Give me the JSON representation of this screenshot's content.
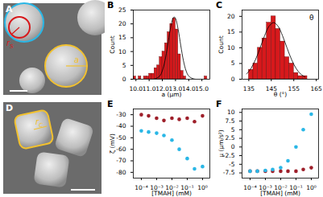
{
  "chart_data": [
    {
      "title": "B",
      "type": "histogram",
      "xlabel": "a (μm)",
      "ylabel": "Count",
      "bins": [
        9.8,
        10.0,
        10.2,
        10.4,
        10.6,
        10.8,
        11.0,
        11.2,
        11.4,
        11.6,
        11.8,
        12.0,
        12.2,
        12.4,
        12.6,
        12.8,
        13.0,
        13.2,
        13.4,
        13.6,
        13.8,
        14.0,
        14.2,
        14.4,
        14.6,
        14.8,
        15.0,
        15.2,
        15.4,
        15.6
      ],
      "values": [
        1,
        0,
        1,
        0,
        1,
        1,
        2,
        2,
        4,
        5,
        8,
        10,
        13,
        17,
        20,
        22,
        18,
        9,
        3,
        1,
        0,
        0,
        0,
        0,
        0,
        0,
        0,
        1,
        0
      ],
      "color": "#d7191c",
      "fit": {
        "x": [
          9.8,
          11.0,
          11.4,
          11.8,
          12.0,
          12.2,
          12.4,
          12.6,
          12.8,
          12.9,
          13.0,
          13.2,
          13.4,
          13.6,
          13.8,
          14.0,
          14.4,
          15.0,
          15.6
        ],
        "values": [
          0,
          0,
          0.09,
          1.13,
          3.05,
          6.7,
          12.1,
          18.0,
          21.96,
          22.5,
          21.96,
          18.0,
          12.1,
          6.7,
          3.05,
          1.13,
          0.09,
          0,
          0
        ],
        "color": "#000000"
      },
      "xlim": [
        9.8,
        15.6
      ],
      "xticks": [
        {
          "value": 10,
          "label": "10.0"
        },
        {
          "value": 11,
          "label": "11.0"
        },
        {
          "value": 12,
          "label": "12.0"
        },
        {
          "value": 13,
          "label": "13.0"
        },
        {
          "value": 14,
          "label": "14.0"
        },
        {
          "value": 15,
          "label": "15.0"
        }
      ],
      "ylim": [
        0,
        25
      ],
      "yticks": [
        0,
        5,
        10,
        15,
        20,
        25
      ]
    },
    {
      "title": "C",
      "type": "histogram",
      "xlabel": "θ (°)",
      "ylabel": "Count",
      "annotation": "θ",
      "bins": [
        135,
        137,
        139,
        141,
        143,
        145,
        147,
        149,
        151,
        153,
        155,
        157,
        159,
        161
      ],
      "values": [
        3,
        5,
        10,
        13,
        18,
        20,
        16,
        12,
        7,
        5,
        2,
        1,
        1
      ],
      "color": "#d7191c",
      "fit": {
        "x": [
          134,
          136,
          138,
          140,
          142,
          144,
          146,
          148,
          150,
          152,
          154,
          156,
          158,
          160
        ],
        "values": [
          1.67,
          3.45,
          6.25,
          9.93,
          13.8,
          16.85,
          18,
          16.85,
          13.8,
          9.93,
          6.25,
          3.45,
          1.67,
          0.7
        ],
        "color": "#000000"
      },
      "xlim": [
        132,
        166
      ],
      "xticks": [
        135,
        145,
        155,
        165
      ],
      "ylim": [
        0,
        22
      ],
      "yticks": [
        0,
        5,
        10,
        15,
        20
      ]
    },
    {
      "title": "E",
      "type": "scatter",
      "xlabel": "[TMAH] (mM)",
      "ylabel": "ζ (mV)",
      "log": "x",
      "x": [
        0.0001,
        0.0003,
        0.001,
        0.003,
        0.01,
        0.03,
        0.1,
        0.3,
        1
      ],
      "series": [
        {
          "color": "#9e1f2a",
          "values": [
            -30,
            -31,
            -33,
            -35,
            -33,
            -34,
            -33,
            -36,
            -31
          ]
        },
        {
          "color": "#2ab7e6",
          "values": [
            -44,
            -45,
            -46,
            -48,
            -52,
            -60,
            -68,
            -77,
            -75
          ]
        }
      ],
      "xlim": [
        3e-05,
        3
      ],
      "xticks": [
        {
          "value": 0.0001,
          "label": "10⁻⁴"
        },
        {
          "value": 0.001,
          "label": "10⁻³"
        },
        {
          "value": 0.01,
          "label": "10⁻²"
        },
        {
          "value": 0.1,
          "label": "10⁻¹"
        },
        {
          "value": 1,
          "label": "10⁰"
        }
      ],
      "ylim": [
        -85,
        -25
      ],
      "yticks": [
        -30,
        -40,
        -50,
        -60,
        -70,
        -80
      ]
    },
    {
      "title": "F",
      "type": "scatter",
      "xlabel": "[TMAH] (mM)",
      "ylabel": "μ (μm/s²)",
      "log": "x",
      "x": [
        0.0001,
        0.0003,
        0.001,
        0.003,
        0.01,
        0.03,
        0.1,
        0.3,
        1
      ],
      "series": [
        {
          "color": "#9e1f2a",
          "values": [
            -7,
            -7,
            -7,
            -7,
            -7,
            -7,
            -7,
            -6.5,
            -6
          ]
        },
        {
          "color": "#2ab7e6",
          "values": [
            -7,
            -7,
            -6.8,
            -6.5,
            -6,
            -4,
            0,
            5,
            9.5
          ]
        }
      ],
      "xlim": [
        3e-05,
        3
      ],
      "xticks": [
        {
          "value": 0.0001,
          "label": "10⁻⁴"
        },
        {
          "value": 0.001,
          "label": "10⁻³"
        },
        {
          "value": 0.01,
          "label": "10⁻²"
        },
        {
          "value": 0.1,
          "label": "10⁻¹"
        },
        {
          "value": 1,
          "label": "10⁰"
        }
      ],
      "ylim": [
        -9,
        11
      ],
      "yticks": [
        -7.5,
        -5,
        -2.5,
        0,
        2.5,
        5,
        7.5,
        10
      ]
    }
  ],
  "images": [
    {
      "title": "A",
      "labels": [
        {
          "text": "r",
          "subscript": "S",
          "color": "#d7191c"
        },
        {
          "text": "a",
          "color": "#f2c12e"
        }
      ]
    },
    {
      "title": "D",
      "labels": [
        {
          "text": "r",
          "subscript": "C",
          "color": "#f2c12e"
        }
      ]
    }
  ]
}
